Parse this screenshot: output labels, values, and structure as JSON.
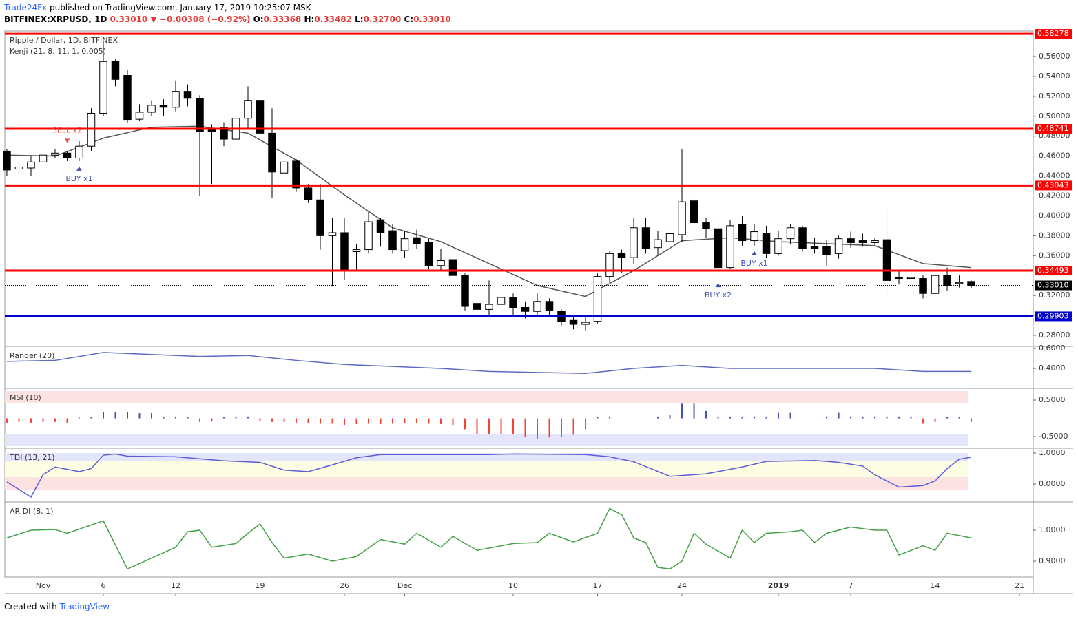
{
  "header": {
    "brand": "Trade24Fx",
    "published": "published on TradingView.com, January 17, 2019 10:25:07 MSK",
    "symbol": "BITFINEX:XRPUSD, 1D",
    "price": "0.33010",
    "arrow": "▼",
    "change": "−0.00308 (−0.92%)",
    "o_label": "O:",
    "o": "0.33368",
    "h_label": "H:",
    "h": "0.33482",
    "l_label": "L:",
    "l": "0.32700",
    "c_label": "C:",
    "c": "0.33010"
  },
  "footer": {
    "created": "Created with",
    "brand": "TradingView"
  },
  "chart_data": [
    {
      "type": "candlestick",
      "title": "Ripple / Dollar, 1D, BITFINEX",
      "subtitle": "Kenji (21, 8, 11, 1, 0.005)",
      "up_color": "#ffffff",
      "down_color": "#000000",
      "ohlc": [
        [
          0.465,
          0.467,
          0.44,
          0.446
        ],
        [
          0.447,
          0.455,
          0.44,
          0.449
        ],
        [
          0.448,
          0.46,
          0.44,
          0.454
        ],
        [
          0.454,
          0.463,
          0.452,
          0.461
        ],
        [
          0.461,
          0.467,
          0.458,
          0.463
        ],
        [
          0.463,
          0.465,
          0.455,
          0.458
        ],
        [
          0.458,
          0.475,
          0.455,
          0.47
        ],
        [
          0.47,
          0.508,
          0.465,
          0.503
        ],
        [
          0.503,
          0.575,
          0.5,
          0.555
        ],
        [
          0.555,
          0.557,
          0.53,
          0.537
        ],
        [
          0.541,
          0.547,
          0.493,
          0.496
        ],
        [
          0.497,
          0.512,
          0.495,
          0.504
        ],
        [
          0.504,
          0.516,
          0.5,
          0.511
        ],
        [
          0.511,
          0.517,
          0.5,
          0.509
        ],
        [
          0.509,
          0.536,
          0.505,
          0.525
        ],
        [
          0.525,
          0.532,
          0.51,
          0.518
        ],
        [
          0.518,
          0.521,
          0.42,
          0.485
        ],
        [
          0.488,
          0.492,
          0.432,
          0.485
        ],
        [
          0.489,
          0.494,
          0.47,
          0.477
        ],
        [
          0.477,
          0.505,
          0.472,
          0.498
        ],
        [
          0.498,
          0.53,
          0.488,
          0.516
        ],
        [
          0.516,
          0.518,
          0.478,
          0.483
        ],
        [
          0.483,
          0.508,
          0.418,
          0.444
        ],
        [
          0.443,
          0.467,
          0.42,
          0.454
        ],
        [
          0.455,
          0.457,
          0.424,
          0.428
        ],
        [
          0.428,
          0.432,
          0.413,
          0.416
        ],
        [
          0.416,
          0.432,
          0.366,
          0.38
        ],
        [
          0.38,
          0.398,
          0.329,
          0.383
        ],
        [
          0.383,
          0.398,
          0.336,
          0.346
        ],
        [
          0.364,
          0.372,
          0.346,
          0.366
        ],
        [
          0.366,
          0.404,
          0.362,
          0.394
        ],
        [
          0.396,
          0.398,
          0.369,
          0.383
        ],
        [
          0.385,
          0.392,
          0.362,
          0.366
        ],
        [
          0.365,
          0.385,
          0.358,
          0.377
        ],
        [
          0.378,
          0.386,
          0.367,
          0.372
        ],
        [
          0.373,
          0.377,
          0.347,
          0.35
        ],
        [
          0.35,
          0.367,
          0.346,
          0.355
        ],
        [
          0.356,
          0.358,
          0.337,
          0.34
        ],
        [
          0.34,
          0.342,
          0.305,
          0.309
        ],
        [
          0.312,
          0.325,
          0.298,
          0.306
        ],
        [
          0.306,
          0.335,
          0.298,
          0.311
        ],
        [
          0.311,
          0.325,
          0.3,
          0.318
        ],
        [
          0.318,
          0.322,
          0.3,
          0.308
        ],
        [
          0.308,
          0.314,
          0.297,
          0.304
        ],
        [
          0.304,
          0.322,
          0.3,
          0.314
        ],
        [
          0.314,
          0.317,
          0.299,
          0.305
        ],
        [
          0.304,
          0.306,
          0.29,
          0.294
        ],
        [
          0.295,
          0.3,
          0.286,
          0.291
        ],
        [
          0.291,
          0.3,
          0.285,
          0.293
        ],
        [
          0.294,
          0.342,
          0.292,
          0.339
        ],
        [
          0.339,
          0.365,
          0.333,
          0.362
        ],
        [
          0.362,
          0.366,
          0.343,
          0.358
        ],
        [
          0.358,
          0.398,
          0.352,
          0.388
        ],
        [
          0.388,
          0.398,
          0.362,
          0.367
        ],
        [
          0.368,
          0.385,
          0.36,
          0.376
        ],
        [
          0.374,
          0.384,
          0.37,
          0.382
        ],
        [
          0.381,
          0.467,
          0.374,
          0.414
        ],
        [
          0.415,
          0.42,
          0.388,
          0.393
        ],
        [
          0.393,
          0.398,
          0.378,
          0.387
        ],
        [
          0.387,
          0.395,
          0.338,
          0.348
        ],
        [
          0.348,
          0.396,
          0.347,
          0.39
        ],
        [
          0.391,
          0.4,
          0.37,
          0.375
        ],
        [
          0.375,
          0.392,
          0.37,
          0.384
        ],
        [
          0.382,
          0.39,
          0.358,
          0.362
        ],
        [
          0.362,
          0.385,
          0.36,
          0.377
        ],
        [
          0.377,
          0.392,
          0.372,
          0.388
        ],
        [
          0.388,
          0.39,
          0.364,
          0.367
        ],
        [
          0.369,
          0.378,
          0.362,
          0.367
        ],
        [
          0.369,
          0.376,
          0.35,
          0.361
        ],
        [
          0.362,
          0.38,
          0.357,
          0.377
        ],
        [
          0.377,
          0.384,
          0.368,
          0.373
        ],
        [
          0.375,
          0.382,
          0.369,
          0.373
        ],
        [
          0.373,
          0.378,
          0.37,
          0.375
        ],
        [
          0.376,
          0.405,
          0.324,
          0.335
        ],
        [
          0.338,
          0.346,
          0.331,
          0.337
        ],
        [
          0.337,
          0.345,
          0.332,
          0.338
        ],
        [
          0.337,
          0.34,
          0.317,
          0.322
        ],
        [
          0.322,
          0.344,
          0.32,
          0.34
        ],
        [
          0.34,
          0.348,
          0.325,
          0.33
        ],
        [
          0.332,
          0.34,
          0.328,
          0.333
        ],
        [
          0.334,
          0.335,
          0.327,
          0.33
        ]
      ],
      "kenji": {
        "color": "#555555",
        "x": [
          0,
          4,
          8,
          12,
          16,
          20,
          24,
          28,
          32,
          36,
          40,
          44,
          48,
          52,
          56,
          60,
          64,
          68,
          72,
          76,
          80
        ],
        "values": [
          0.461,
          0.46,
          0.478,
          0.489,
          0.49,
          0.483,
          0.456,
          0.421,
          0.388,
          0.374,
          0.352,
          0.33,
          0.319,
          0.345,
          0.375,
          0.378,
          0.374,
          0.372,
          0.37,
          0.352,
          0.348
        ]
      },
      "ylim": [
        0.2696,
        0.5856
      ],
      "yticks": [
        {
          "value": 0.28,
          "label": "0.28000"
        },
        {
          "value": 0.3,
          "label": "0.30000"
        },
        {
          "value": 0.32,
          "label": "0.32000"
        },
        {
          "value": 0.36,
          "label": "0.36000"
        },
        {
          "value": 0.38,
          "label": "0.38000"
        },
        {
          "value": 0.4,
          "label": "0.40000"
        },
        {
          "value": 0.42,
          "label": "0.42000"
        },
        {
          "value": 0.44,
          "label": "0.44000"
        },
        {
          "value": 0.46,
          "label": "0.46000"
        },
        {
          "value": 0.48,
          "label": "0.48000"
        },
        {
          "value": 0.5,
          "label": "0.50000"
        },
        {
          "value": 0.52,
          "label": "0.52000"
        },
        {
          "value": 0.54,
          "label": "0.54000"
        },
        {
          "value": 0.56,
          "label": "0.56000"
        }
      ],
      "xlim": [
        -0.17,
        85.14
      ],
      "xticks": [
        {
          "value": 3,
          "label": "Nov"
        },
        {
          "value": 8,
          "label": "6"
        },
        {
          "value": 14,
          "label": "12"
        },
        {
          "value": 21,
          "label": "19"
        },
        {
          "value": 28,
          "label": "26"
        },
        {
          "value": 33,
          "label": "Dec"
        },
        {
          "value": 42,
          "label": "10"
        },
        {
          "value": 49,
          "label": "17"
        },
        {
          "value": 56,
          "label": "24"
        },
        {
          "value": 64,
          "label": "2019"
        },
        {
          "value": 70,
          "label": "7"
        },
        {
          "value": 77,
          "label": "14"
        },
        {
          "value": 84,
          "label": "21"
        }
      ],
      "levels": [
        {
          "value": 0.58278,
          "label": "0.58278",
          "color": "#ff0000"
        },
        {
          "value": 0.48741,
          "label": "0.48741",
          "color": "#ff0000"
        },
        {
          "value": 0.43043,
          "label": "0.43043",
          "color": "#ff0000"
        },
        {
          "value": 0.34493,
          "label": "0.34493",
          "color": "#ff0000"
        },
        {
          "value": 0.29903,
          "label": "0.29903",
          "color": "#0000cc"
        }
      ],
      "last": {
        "value": 0.3301,
        "label": "0.33010",
        "color": "#000000"
      },
      "annotations": [
        {
          "text": "SELL x2",
          "x": 5,
          "color": "#ef5350",
          "side": "above"
        },
        {
          "text": "BUY x1",
          "x": 6,
          "color": "#3f51b5",
          "side": "below"
        },
        {
          "text": "BUY x2",
          "x": 59,
          "color": "#3f51b5",
          "side": "below"
        },
        {
          "text": "BUY x1",
          "x": 62,
          "color": "#3f51b5",
          "side": "below"
        }
      ]
    },
    {
      "type": "line",
      "title": "Ranger (20)",
      "color": "#5c6bc0",
      "x": [
        0,
        4,
        8,
        12,
        16,
        20,
        24,
        28,
        32,
        36,
        40,
        44,
        48,
        52,
        56,
        60,
        64,
        68,
        72,
        76,
        80
      ],
      "values": [
        0.47,
        0.48,
        0.56,
        0.54,
        0.52,
        0.53,
        0.48,
        0.44,
        0.42,
        0.4,
        0.37,
        0.36,
        0.35,
        0.4,
        0.43,
        0.4,
        0.4,
        0.4,
        0.4,
        0.37,
        0.37
      ],
      "ylim": [
        0.207,
        0.621
      ],
      "yticks": [
        {
          "value": 0.6,
          "label": "0.6000"
        },
        {
          "value": 0.4,
          "label": "0.4000"
        }
      ]
    },
    {
      "type": "bar",
      "title": "MSI (10)",
      "colors": {
        "negative": "#f44336",
        "positive": "#3f51b5"
      },
      "values": [
        -0.12,
        -0.1,
        -0.12,
        -0.1,
        -0.1,
        -0.12,
        0.02,
        0.04,
        0.18,
        0.16,
        0.16,
        0.14,
        0.14,
        0.05,
        0.05,
        0.04,
        -0.1,
        -0.08,
        0.04,
        0.05,
        0.05,
        -0.08,
        -0.1,
        -0.1,
        -0.12,
        -0.12,
        -0.15,
        -0.15,
        -0.18,
        -0.16,
        -0.15,
        -0.16,
        -0.15,
        -0.14,
        -0.14,
        -0.15,
        -0.16,
        -0.18,
        -0.3,
        -0.44,
        -0.44,
        -0.44,
        -0.44,
        -0.5,
        -0.55,
        -0.52,
        -0.52,
        -0.45,
        -0.3,
        0.05,
        0.05,
        0,
        0,
        0,
        0.05,
        0.1,
        0.4,
        0.4,
        0.2,
        0.05,
        0.05,
        0.05,
        0.05,
        0.05,
        0.15,
        0.15,
        0,
        0,
        0.05,
        0.15,
        0.05,
        0.05,
        0.05,
        0.05,
        0.05,
        0.05,
        -0.15,
        -0.1,
        0.04,
        0.04,
        -0.1
      ],
      "ylim": [
        -0.8,
        0.82
      ],
      "yticks": [
        {
          "value": 0.5,
          "label": "0.5000"
        },
        {
          "value": -0.5,
          "label": "-0.5000"
        }
      ]
    },
    {
      "type": "line",
      "title": "TDI (13, 21)",
      "color": "#5b5bd6",
      "x": [
        0,
        2,
        3,
        4,
        6,
        7,
        8,
        9,
        10,
        14,
        18,
        21,
        23,
        25,
        27,
        29,
        31,
        40,
        42,
        48,
        50,
        52,
        55,
        58,
        61,
        63,
        67,
        69,
        71,
        72,
        74,
        76,
        77,
        78,
        79,
        80
      ],
      "values": [
        0.07,
        -0.42,
        0.3,
        0.55,
        0.4,
        0.5,
        0.93,
        0.97,
        0.9,
        0.88,
        0.75,
        0.7,
        0.45,
        0.4,
        0.62,
        0.85,
        0.95,
        0.95,
        0.97,
        0.95,
        0.88,
        0.72,
        0.25,
        0.33,
        0.55,
        0.73,
        0.76,
        0.7,
        0.58,
        0.3,
        -0.1,
        -0.05,
        0.1,
        0.5,
        0.8,
        0.87
      ],
      "ylim": [
        -0.556,
        1.156
      ],
      "yticks": [
        {
          "value": 1,
          "label": "1.0000"
        },
        {
          "value": 0,
          "label": "0.0000"
        }
      ]
    },
    {
      "type": "line",
      "title": "AR DI (8, 1)",
      "color": "#43a047",
      "x": [
        0,
        2,
        4,
        5,
        8,
        10,
        12,
        14,
        15,
        16,
        17,
        19,
        20,
        21,
        22,
        23,
        25,
        27,
        29,
        31,
        33,
        34,
        36,
        37,
        39,
        42,
        44,
        45,
        47,
        49,
        50,
        51,
        52,
        53,
        54,
        55,
        56,
        57,
        58,
        60,
        61,
        62,
        63,
        65,
        66,
        67,
        68,
        70,
        72,
        73,
        74,
        76,
        77,
        78,
        80
      ],
      "values": [
        0.975,
        1.0,
        1.002,
        0.99,
        1.03,
        0.875,
        0.91,
        0.945,
        0.995,
        1.0,
        0.945,
        0.957,
        0.99,
        1.02,
        0.96,
        0.91,
        0.923,
        0.9,
        0.915,
        0.97,
        0.955,
        0.99,
        0.945,
        0.98,
        0.935,
        0.957,
        0.96,
        0.99,
        0.962,
        0.99,
        1.07,
        1.05,
        0.975,
        0.96,
        0.88,
        0.875,
        0.9,
        0.99,
        0.955,
        0.91,
        1.0,
        0.96,
        0.99,
        0.995,
        1.0,
        0.96,
        0.99,
        1.01,
        1.0,
        1.0,
        0.92,
        0.95,
        0.935,
        0.99,
        0.975
      ],
      "ylim": [
        0.849,
        1.091
      ],
      "yticks": [
        {
          "value": 1,
          "label": "1.0000"
        },
        {
          "value": 0.9,
          "label": "0.9000"
        }
      ]
    }
  ]
}
